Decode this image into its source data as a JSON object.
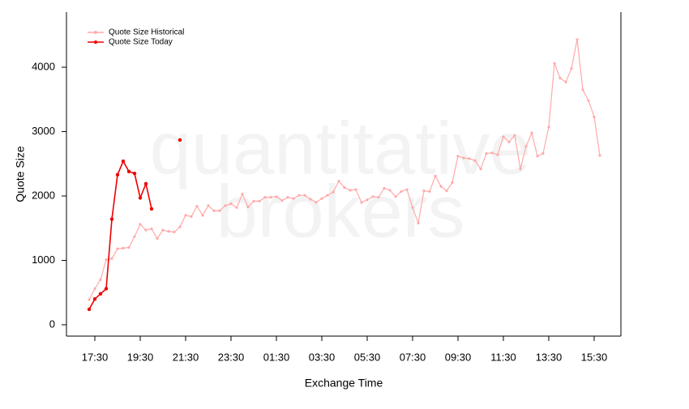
{
  "chart_data": {
    "type": "line",
    "watermark": [
      "quantitative",
      "brokers"
    ],
    "xlabel": "Exchange Time",
    "ylabel": "Quote Size",
    "legend": "top-left",
    "categories": [
      "17:15",
      "17:30",
      "17:45",
      "18:00",
      "18:15",
      "18:30",
      "18:45",
      "19:00",
      "19:15",
      "19:30",
      "19:45",
      "20:00",
      "20:15",
      "20:30",
      "20:45",
      "21:00",
      "21:15",
      "21:30",
      "21:45",
      "22:00",
      "22:15",
      "22:30",
      "22:45",
      "23:00",
      "23:15",
      "23:30",
      "23:45",
      "00:00",
      "00:15",
      "00:30",
      "00:45",
      "01:00",
      "01:15",
      "01:30",
      "01:45",
      "02:00",
      "02:15",
      "02:30",
      "02:45",
      "03:00",
      "03:15",
      "03:30",
      "03:45",
      "04:00",
      "04:15",
      "04:30",
      "04:45",
      "05:00",
      "05:15",
      "05:30",
      "05:45",
      "06:00",
      "06:15",
      "06:30",
      "06:45",
      "07:00",
      "07:15",
      "07:30",
      "07:45",
      "08:00",
      "08:15",
      "08:30",
      "08:45",
      "09:00",
      "09:15",
      "09:30",
      "09:45",
      "10:00",
      "10:15",
      "10:30",
      "10:45",
      "11:00",
      "11:15",
      "11:30",
      "11:45",
      "12:00",
      "12:15",
      "12:30",
      "12:45",
      "13:00",
      "13:15",
      "13:30",
      "13:45",
      "14:00",
      "14:15",
      "14:30",
      "14:45",
      "15:00",
      "15:15",
      "15:30",
      "15:45"
    ],
    "xticks": [
      "17:30",
      "19:30",
      "21:30",
      "23:30",
      "01:30",
      "03:30",
      "05:30",
      "07:30",
      "09:30",
      "11:30",
      "13:30",
      "15:30"
    ],
    "ylim": [
      -176,
      4855
    ],
    "yticks": [
      0,
      1000,
      2000,
      3000,
      4000
    ],
    "series": [
      {
        "name": "Quote Size Historical",
        "color": "#ffaaaa",
        "values": [
          390,
          560,
          700,
          1010,
          1030,
          1180,
          1190,
          1200,
          1370,
          1560,
          1470,
          1490,
          1340,
          1470,
          1450,
          1440,
          1520,
          1700,
          1680,
          1840,
          1700,
          1850,
          1770,
          1770,
          1850,
          1880,
          1820,
          2030,
          1830,
          1920,
          1920,
          1980,
          1980,
          1990,
          1930,
          1980,
          1960,
          2010,
          2010,
          1950,
          1900,
          1960,
          2010,
          2060,
          2230,
          2130,
          2090,
          2100,
          1900,
          1940,
          1990,
          1980,
          2120,
          2090,
          1990,
          2070,
          2100,
          1820,
          1580,
          2080,
          2070,
          2310,
          2150,
          2080,
          2210,
          2620,
          2590,
          2580,
          2550,
          2420,
          2660,
          2670,
          2640,
          2920,
          2840,
          2940,
          2420,
          2770,
          2980,
          2620,
          2660,
          3070,
          4060,
          3830,
          3770,
          3980,
          4430,
          3650,
          3480,
          3230,
          2630
        ]
      },
      {
        "name": "Quote Size Today",
        "color": "#ee0000",
        "values": [
          240,
          400,
          480,
          560,
          1640,
          2330,
          2540,
          2380,
          2350,
          1970,
          2190,
          1800,
          null,
          null,
          null,
          null,
          2870,
          null,
          null,
          null,
          null,
          null,
          null,
          null,
          null,
          null,
          null,
          null,
          null,
          null,
          null,
          null,
          null,
          null,
          null,
          null,
          null,
          null,
          null,
          null,
          null,
          null,
          null,
          null,
          null,
          null,
          null,
          null,
          null,
          null,
          null,
          null,
          null,
          null,
          null,
          null,
          null,
          null,
          null,
          null,
          null,
          null,
          null,
          null,
          null,
          null,
          null,
          null,
          null,
          null,
          null,
          null,
          null,
          null,
          null,
          null,
          null,
          null,
          null,
          null,
          null,
          null,
          null,
          null,
          null,
          null,
          null,
          null,
          null,
          null,
          null
        ]
      }
    ]
  }
}
